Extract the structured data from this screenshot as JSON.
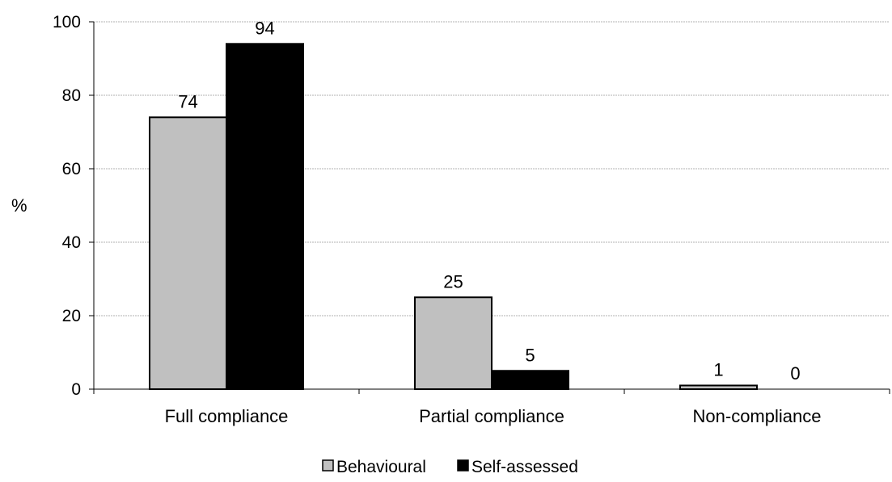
{
  "chart_data": {
    "type": "bar",
    "categories": [
      "Full compliance",
      "Partial compliance",
      "Non-compliance"
    ],
    "series": [
      {
        "name": "Behavioural",
        "values": [
          74,
          25,
          1
        ],
        "color": "#c0c0c0"
      },
      {
        "name": "Self-assessed",
        "values": [
          94,
          5,
          0
        ],
        "color": "#000000"
      }
    ],
    "title": "",
    "xlabel": "",
    "ylabel": "%",
    "ylim": [
      0,
      100
    ],
    "yticks": [
      "0",
      "20",
      "40",
      "60",
      "80",
      "100"
    ],
    "data_labels": [
      [
        "74",
        "25",
        "1"
      ],
      [
        "94",
        "5",
        "0"
      ]
    ],
    "grid": true,
    "legend_position": "bottom"
  }
}
